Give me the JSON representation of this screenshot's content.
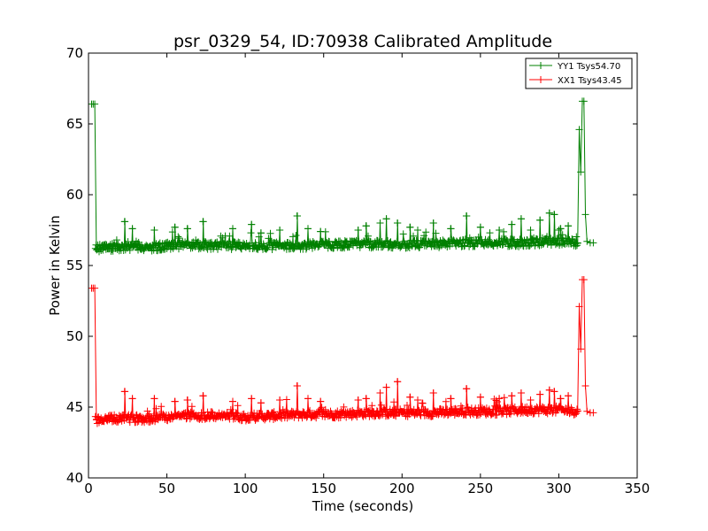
{
  "chart_data": {
    "type": "line",
    "title": "psr_0329_54, ID:70938 Calibrated Amplitude",
    "xlabel": "Time (seconds)",
    "ylabel": "Power in Kelvin",
    "xlim": [
      0,
      350
    ],
    "ylim": [
      40,
      70
    ],
    "xticks": [
      0,
      50,
      100,
      150,
      200,
      250,
      300,
      350
    ],
    "yticks": [
      40,
      45,
      50,
      55,
      60,
      65,
      70
    ],
    "grid": false,
    "legend_position": "top-right",
    "marker": "plus",
    "series": [
      {
        "name": "YY1 Tsys54.70",
        "color": "#008000",
        "baseline_x": [
          4,
          20,
          40,
          60,
          80,
          100,
          120,
          140,
          160,
          180,
          200,
          220,
          240,
          260,
          280,
          300,
          312
        ],
        "baseline_y": [
          56.2,
          56.3,
          56.3,
          56.4,
          56.4,
          56.4,
          56.4,
          56.4,
          56.5,
          56.5,
          56.5,
          56.5,
          56.6,
          56.6,
          56.6,
          56.7,
          56.6
        ],
        "start": {
          "x": [
            2,
            3,
            4,
            5
          ],
          "y": [
            66.4,
            66.4,
            66.4,
            56.2
          ]
        },
        "end": {
          "x": [
            312,
            313,
            314,
            315,
            316,
            317,
            318,
            320,
            322
          ],
          "y": [
            56.6,
            64.6,
            61.6,
            66.6,
            66.6,
            58.6,
            56.7,
            56.6,
            56.6
          ]
        },
        "spikes": [
          {
            "x": 23,
            "y": 58.1
          },
          {
            "x": 28,
            "y": 57.6
          },
          {
            "x": 42,
            "y": 57.5
          },
          {
            "x": 55,
            "y": 57.7
          },
          {
            "x": 63,
            "y": 57.6
          },
          {
            "x": 73,
            "y": 58.1
          },
          {
            "x": 92,
            "y": 57.6
          },
          {
            "x": 104,
            "y": 57.9
          },
          {
            "x": 110,
            "y": 57.3
          },
          {
            "x": 122,
            "y": 57.5
          },
          {
            "x": 133,
            "y": 58.5
          },
          {
            "x": 140,
            "y": 57.6
          },
          {
            "x": 148,
            "y": 57.4
          },
          {
            "x": 172,
            "y": 57.5
          },
          {
            "x": 177,
            "y": 57.8
          },
          {
            "x": 186,
            "y": 58.0
          },
          {
            "x": 190,
            "y": 58.3
          },
          {
            "x": 197,
            "y": 58.0
          },
          {
            "x": 205,
            "y": 57.7
          },
          {
            "x": 210,
            "y": 57.5
          },
          {
            "x": 220,
            "y": 58.0
          },
          {
            "x": 231,
            "y": 57.6
          },
          {
            "x": 241,
            "y": 58.5
          },
          {
            "x": 250,
            "y": 57.7
          },
          {
            "x": 262,
            "y": 57.5
          },
          {
            "x": 270,
            "y": 57.9
          },
          {
            "x": 276,
            "y": 58.3
          },
          {
            "x": 282,
            "y": 57.5
          },
          {
            "x": 288,
            "y": 58.2
          },
          {
            "x": 294,
            "y": 58.7
          },
          {
            "x": 297,
            "y": 58.6
          },
          {
            "x": 301,
            "y": 57.6
          },
          {
            "x": 306,
            "y": 57.8
          }
        ]
      },
      {
        "name": "XX1 Tsys43.45",
        "color": "#ff0000",
        "baseline_x": [
          4,
          20,
          40,
          60,
          80,
          100,
          120,
          140,
          160,
          180,
          200,
          220,
          240,
          260,
          280,
          300,
          312
        ],
        "baseline_y": [
          44.1,
          44.2,
          44.2,
          44.4,
          44.4,
          44.3,
          44.4,
          44.5,
          44.5,
          44.6,
          44.6,
          44.6,
          44.7,
          44.7,
          44.8,
          44.8,
          44.7
        ],
        "start": {
          "x": [
            2,
            3,
            4,
            5
          ],
          "y": [
            53.4,
            53.4,
            53.4,
            44.1
          ]
        },
        "end": {
          "x": [
            312,
            313,
            314,
            315,
            316,
            317,
            318,
            320,
            322
          ],
          "y": [
            44.7,
            52.1,
            49.1,
            54.0,
            54.0,
            46.5,
            44.7,
            44.6,
            44.6
          ]
        },
        "spikes": [
          {
            "x": 23,
            "y": 46.1
          },
          {
            "x": 28,
            "y": 45.6
          },
          {
            "x": 42,
            "y": 45.6
          },
          {
            "x": 55,
            "y": 45.4
          },
          {
            "x": 63,
            "y": 45.5
          },
          {
            "x": 73,
            "y": 45.8
          },
          {
            "x": 92,
            "y": 45.4
          },
          {
            "x": 104,
            "y": 45.6
          },
          {
            "x": 110,
            "y": 45.3
          },
          {
            "x": 122,
            "y": 45.5
          },
          {
            "x": 133,
            "y": 46.5
          },
          {
            "x": 140,
            "y": 45.6
          },
          {
            "x": 148,
            "y": 45.4
          },
          {
            "x": 172,
            "y": 45.5
          },
          {
            "x": 177,
            "y": 45.6
          },
          {
            "x": 186,
            "y": 46.0
          },
          {
            "x": 190,
            "y": 46.4
          },
          {
            "x": 197,
            "y": 46.8
          },
          {
            "x": 205,
            "y": 45.7
          },
          {
            "x": 210,
            "y": 45.5
          },
          {
            "x": 220,
            "y": 46.0
          },
          {
            "x": 231,
            "y": 45.6
          },
          {
            "x": 241,
            "y": 46.3
          },
          {
            "x": 250,
            "y": 45.7
          },
          {
            "x": 262,
            "y": 45.6
          },
          {
            "x": 270,
            "y": 45.8
          },
          {
            "x": 276,
            "y": 46.0
          },
          {
            "x": 282,
            "y": 45.5
          },
          {
            "x": 288,
            "y": 45.9
          },
          {
            "x": 294,
            "y": 46.2
          },
          {
            "x": 297,
            "y": 46.1
          },
          {
            "x": 301,
            "y": 45.6
          },
          {
            "x": 306,
            "y": 45.8
          }
        ]
      }
    ]
  }
}
